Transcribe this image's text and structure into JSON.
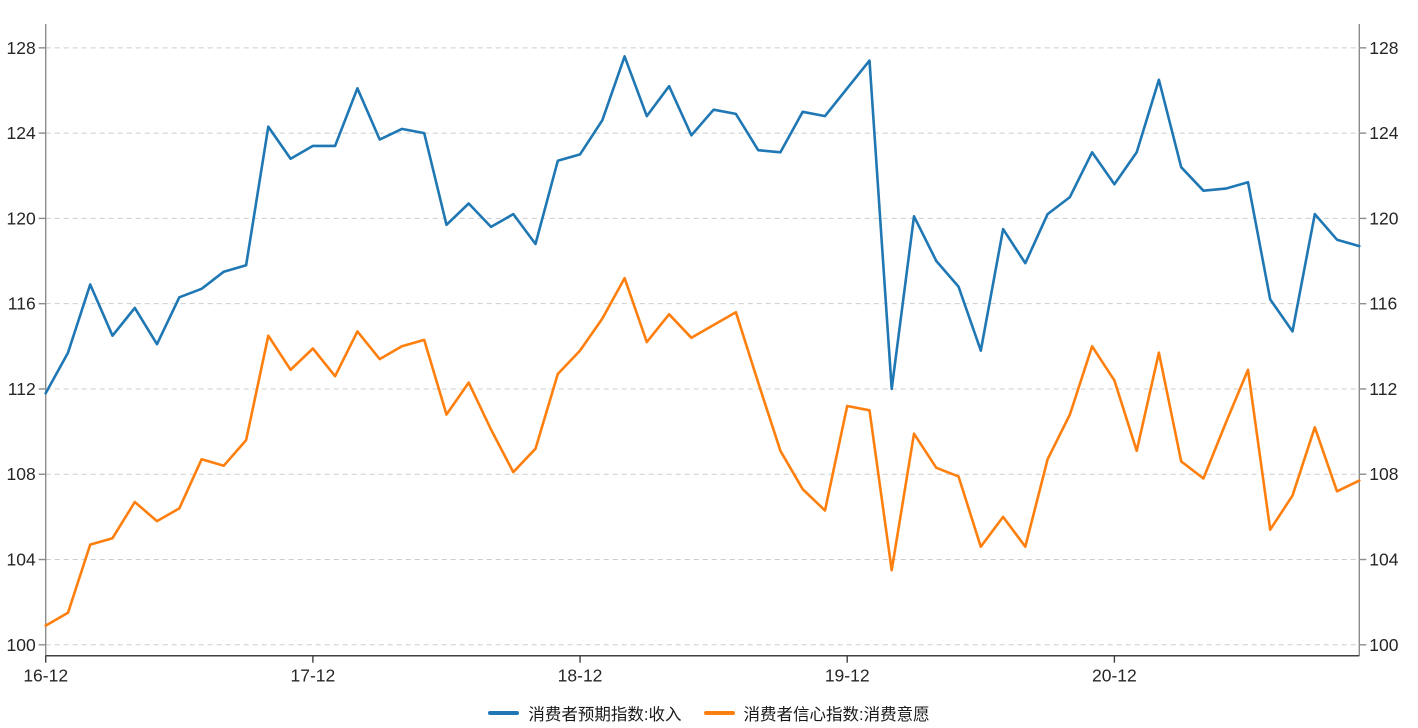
{
  "chart_data": {
    "type": "line",
    "title": "",
    "xlabel": "",
    "ylabel": "",
    "x": [
      "16-12",
      "17-01",
      "17-02",
      "17-03",
      "17-04",
      "17-05",
      "17-06",
      "17-07",
      "17-08",
      "17-09",
      "17-10",
      "17-11",
      "17-12",
      "18-01",
      "18-02",
      "18-03",
      "18-04",
      "18-05",
      "18-06",
      "18-07",
      "18-08",
      "18-09",
      "18-10",
      "18-11",
      "18-12",
      "19-01",
      "19-02",
      "19-03",
      "19-04",
      "19-05",
      "19-06",
      "19-07",
      "19-08",
      "19-09",
      "19-10",
      "19-11",
      "19-12",
      "20-01",
      "20-02",
      "20-03",
      "20-04",
      "20-05",
      "20-06",
      "20-07",
      "20-08",
      "20-09",
      "20-10",
      "20-11",
      "20-12",
      "21-01",
      "21-02",
      "21-03",
      "21-04",
      "21-05",
      "21-06",
      "21-07",
      "21-08",
      "21-09",
      "21-10",
      "21-11"
    ],
    "x_tick_labels": [
      "16-12",
      "17-12",
      "18-12",
      "19-12",
      "20-12"
    ],
    "x_tick_indices": [
      0,
      12,
      24,
      36,
      48
    ],
    "y_ticks": [
      100,
      104,
      108,
      112,
      116,
      120,
      124,
      128
    ],
    "ylim": [
      99.5,
      129.1
    ],
    "grid": "horizontal dashed",
    "axis_labels_both_sides": true,
    "legend_position": "bottom center",
    "series": [
      {
        "name": "消费者预期指数:收入",
        "color": "#1f77b4",
        "values": [
          111.8,
          113.7,
          116.9,
          114.5,
          115.8,
          114.1,
          116.3,
          116.7,
          117.5,
          117.8,
          124.3,
          122.8,
          123.4,
          123.4,
          126.1,
          123.7,
          124.2,
          124.0,
          119.7,
          120.7,
          119.6,
          120.2,
          118.8,
          122.7,
          123.0,
          124.6,
          127.6,
          124.8,
          126.2,
          123.9,
          125.1,
          124.9,
          123.2,
          123.1,
          125.0,
          124.8,
          126.1,
          127.4,
          112.0,
          120.1,
          118.0,
          116.8,
          113.8,
          119.5,
          117.9,
          120.2,
          121.0,
          123.1,
          121.6,
          123.1,
          126.5,
          122.4,
          121.3,
          121.4,
          121.7,
          116.2,
          114.7,
          120.2,
          119.0,
          118.7
        ]
      },
      {
        "name": "消费者信心指数:消费意愿",
        "color": "#ff7f0e",
        "values": [
          100.9,
          101.5,
          104.7,
          105.0,
          106.7,
          105.8,
          106.4,
          108.7,
          108.4,
          109.6,
          114.5,
          112.9,
          113.9,
          112.6,
          114.7,
          113.4,
          114.0,
          114.3,
          110.8,
          112.3,
          110.1,
          108.1,
          109.2,
          112.7,
          113.8,
          115.3,
          117.2,
          114.2,
          115.5,
          114.4,
          115.0,
          115.6,
          112.3,
          109.1,
          107.3,
          106.3,
          111.2,
          111.0,
          103.5,
          109.9,
          108.3,
          107.9,
          104.6,
          106.0,
          104.6,
          108.7,
          110.8,
          114.0,
          112.4,
          109.1,
          113.7,
          108.6,
          107.8,
          110.4,
          112.9,
          105.4,
          107.0,
          110.2,
          107.2,
          107.7
        ]
      }
    ],
    "style": {
      "grid_color": "#cdcdcd",
      "side_spine_color": "#8c8c8c",
      "bottom_spine_color": "#404040",
      "tick_label_color": "#262626"
    }
  }
}
